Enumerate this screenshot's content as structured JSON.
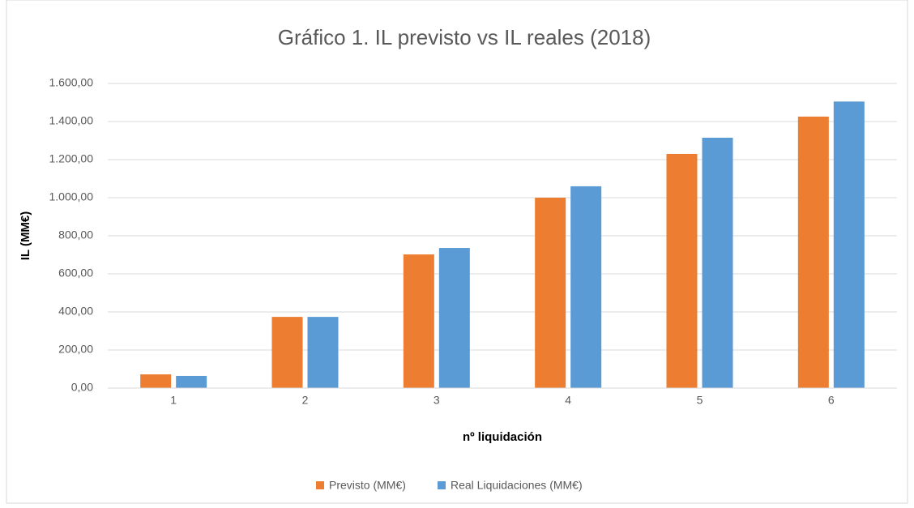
{
  "chart_data": {
    "type": "bar",
    "title": "Gráfico 1. IL previsto vs IL reales (2018)",
    "x_label": "nº liquidación",
    "y_label": "IL (MM€)",
    "categories": [
      "1",
      "2",
      "3",
      "4",
      "5",
      "6"
    ],
    "series": [
      {
        "name": "Previsto (MM€)",
        "color": "#ed7d31",
        "values": [
          72,
          374,
          702,
          1000,
          1230,
          1426
        ]
      },
      {
        "name": "Real Liquidaciones (MM€)",
        "color": "#5b9bd5",
        "values": [
          64,
          374,
          736,
          1060,
          1315,
          1505
        ]
      }
    ],
    "ylim": [
      0,
      1600
    ],
    "yticks": [
      {
        "value": 0,
        "label": "0,00"
      },
      {
        "value": 200,
        "label": "200,00"
      },
      {
        "value": 400,
        "label": "400,00"
      },
      {
        "value": 600,
        "label": "600,00"
      },
      {
        "value": 800,
        "label": "800,00"
      },
      {
        "value": 1000,
        "label": "1.000,00"
      },
      {
        "value": 1200,
        "label": "1.200,00"
      },
      {
        "value": 1400,
        "label": "1.400,00"
      },
      {
        "value": 1600,
        "label": "1.600,00"
      }
    ],
    "grid": true,
    "legend": "bottom"
  }
}
